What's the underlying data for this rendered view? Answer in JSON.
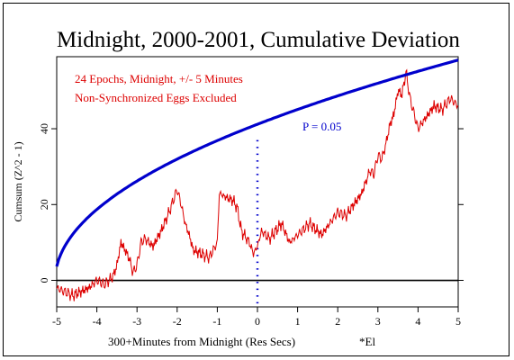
{
  "chart_data": {
    "type": "line",
    "title": "Midnight, 2000-2001, Cumulative Deviation",
    "xlabel": "300+Minutes from Midnight (Res Secs)",
    "xlabel_suffix": "*El",
    "ylabel": "Cumsum (Z^2 - 1)",
    "xlim": [
      -5,
      5
    ],
    "ylim": [
      -7,
      59
    ],
    "xticks": [
      -5,
      -4,
      -3,
      -2,
      -1,
      0,
      1,
      2,
      3,
      4,
      5
    ],
    "yticks": [
      0,
      20,
      40
    ],
    "annotations": [
      {
        "text": "24 Epochs, Midnight, +/- 5 Minutes",
        "color": "#dd0000"
      },
      {
        "text": "Non-Synchronized Eggs Excluded",
        "color": "#dd0000"
      },
      {
        "text": "P = 0.05",
        "color": "#0000cc"
      }
    ],
    "reference_lines": [
      {
        "type": "horizontal",
        "y": 0,
        "color": "#000000"
      },
      {
        "type": "vertical",
        "x": 0,
        "style": "dotted",
        "color": "#0000cc"
      }
    ],
    "series": [
      {
        "color": "#dd0000",
        "x": [
          -5.0,
          -4.8,
          -4.6,
          -4.4,
          -4.2,
          -4.0,
          -3.8,
          -3.6,
          -3.5,
          -3.4,
          -3.2,
          -3.1,
          -3.0,
          -2.9,
          -2.8,
          -2.6,
          -2.4,
          -2.2,
          -2.0,
          -1.9,
          -1.8,
          -1.7,
          -1.6,
          -1.4,
          -1.2,
          -1.1,
          -1.0,
          -0.95,
          -0.8,
          -0.6,
          -0.5,
          -0.4,
          -0.2,
          -0.1,
          0.0,
          0.1,
          0.3,
          0.6,
          0.8,
          1.0,
          1.3,
          1.6,
          1.8,
          2.0,
          2.2,
          2.4,
          2.6,
          2.8,
          2.9,
          3.0,
          3.1,
          3.2,
          3.3,
          3.4,
          3.5,
          3.6,
          3.7,
          3.8,
          3.9,
          4.0,
          4.2,
          4.4,
          4.6,
          4.8,
          5.0
        ],
        "y": [
          -2,
          -3,
          -4,
          -3,
          -2,
          0,
          -1,
          1,
          4,
          10,
          6,
          2,
          4,
          10,
          11,
          9,
          13,
          18,
          24,
          20,
          15,
          12,
          8,
          7,
          6,
          8,
          10,
          23,
          22,
          21,
          19,
          13,
          10,
          7,
          9,
          13,
          11,
          15,
          10,
          12,
          15,
          12,
          15,
          18,
          17,
          20,
          23,
          29,
          28,
          33,
          32,
          36,
          41,
          44,
          50,
          49,
          55,
          48,
          44,
          40,
          43,
          46,
          45,
          48,
          46
        ]
      }
    ],
    "envelope": {
      "label": "P = 0.05",
      "color": "#0000cc",
      "formula": "1.38 * sqrt(96 * n)",
      "y_at_x": [
        {
          "x": -5.0,
          "y": 2.6
        },
        {
          "x": 0.0,
          "y": 41
        },
        {
          "x": 5.0,
          "y": 58
        }
      ]
    }
  }
}
